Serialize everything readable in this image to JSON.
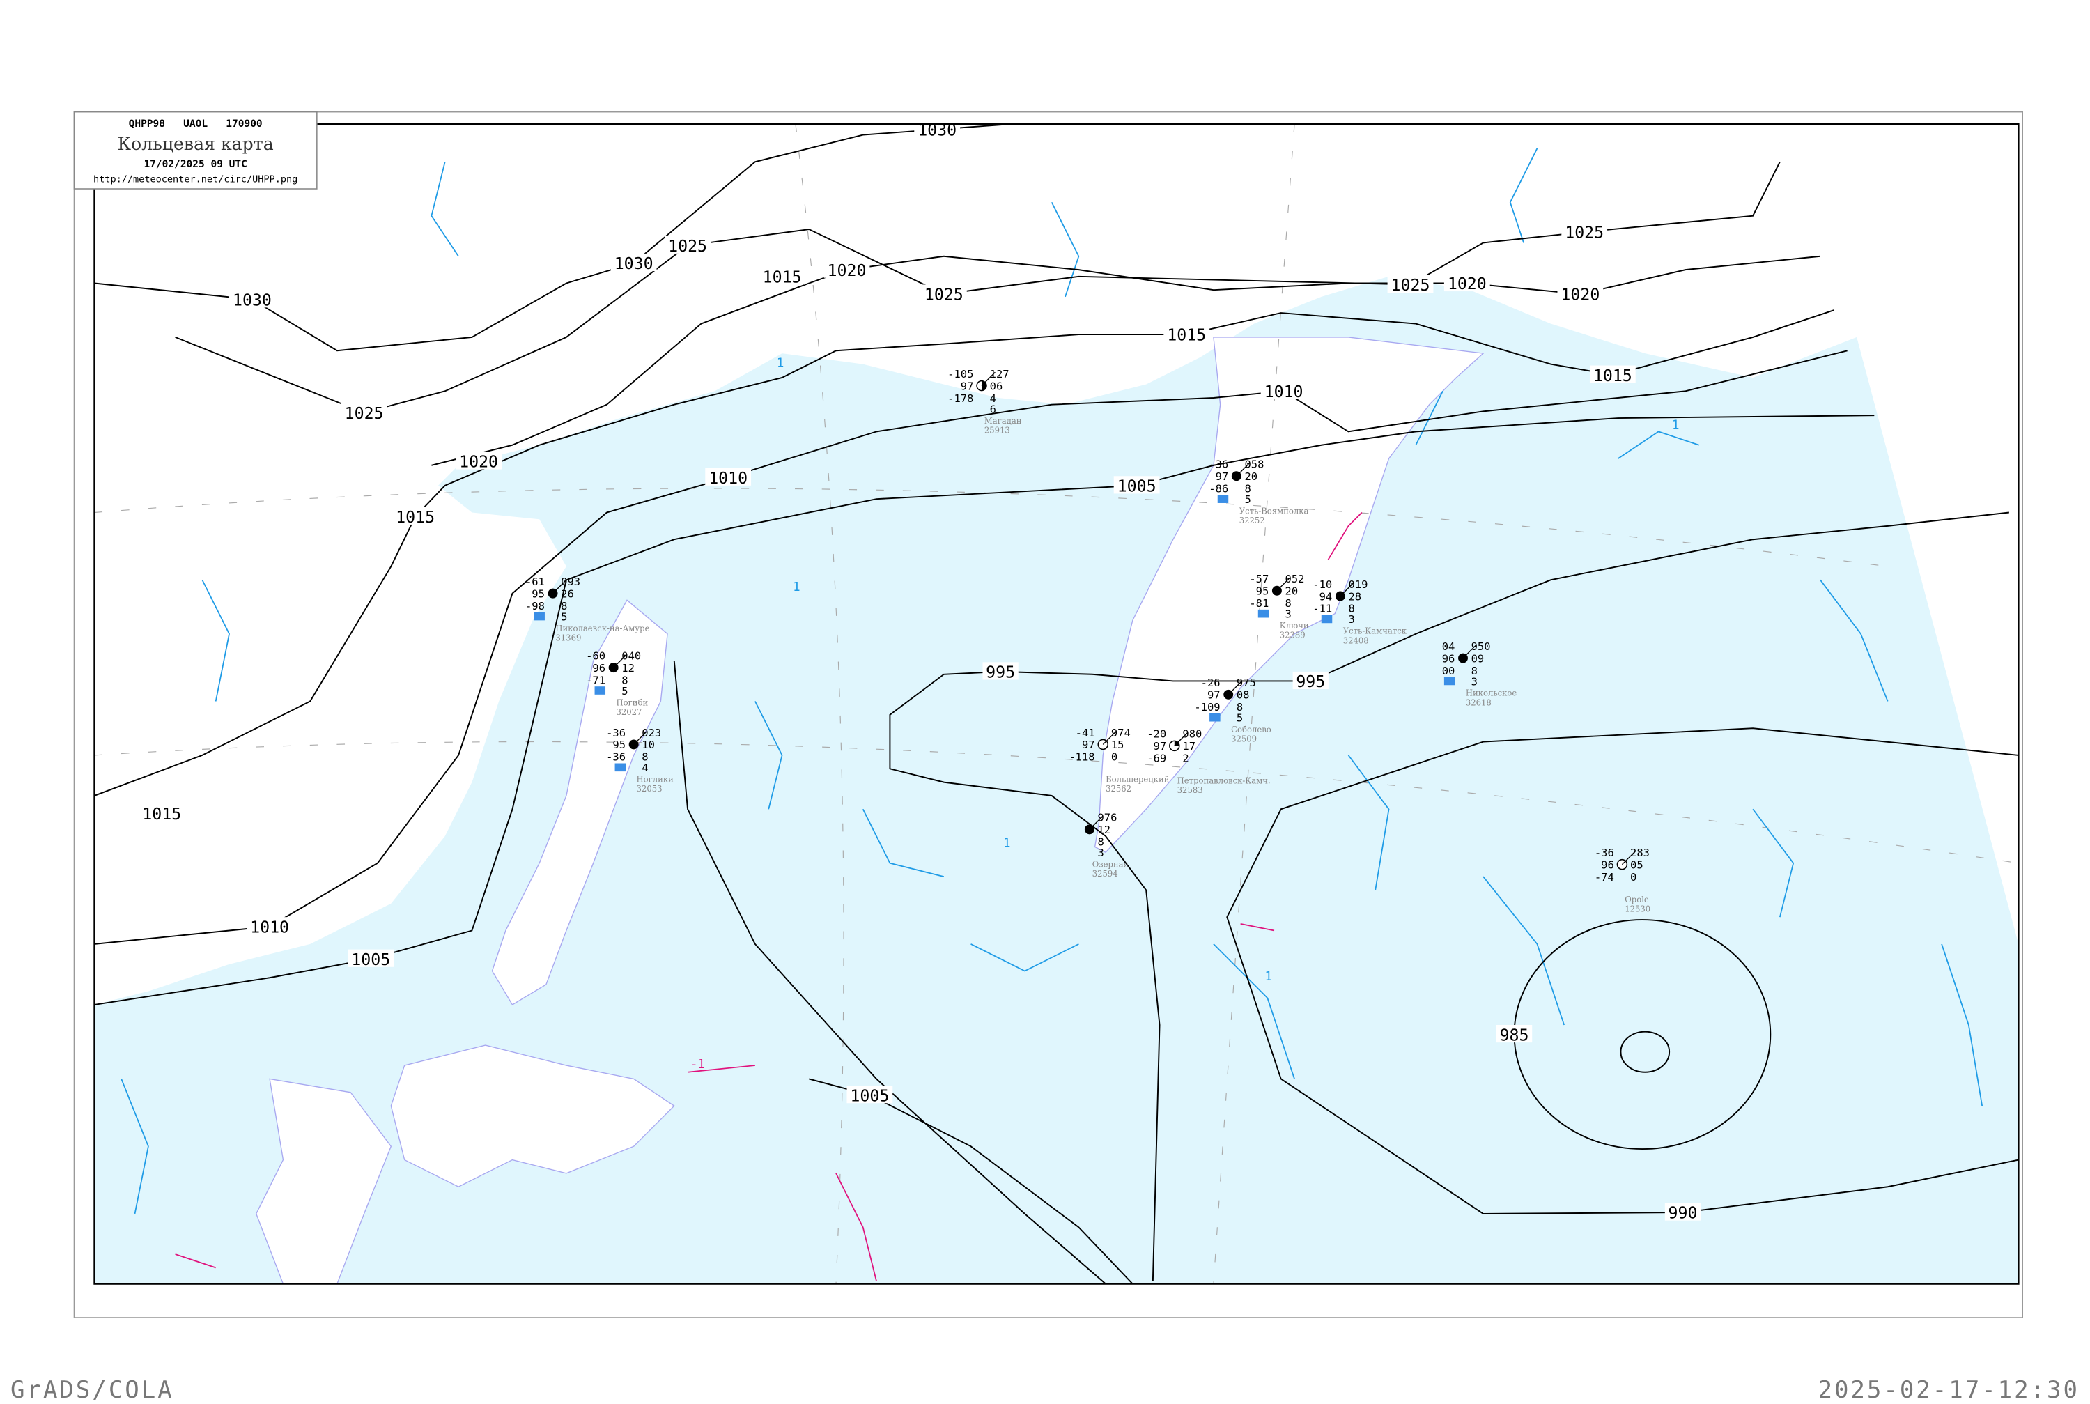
{
  "header": {
    "code_line": "QHPP98   UAOL   170900",
    "title": "Кольцевая карта",
    "datetime": "17/02/2025 09 UTC",
    "url": "http://meteocenter.net/circ/UHPP.png"
  },
  "footer": {
    "left": "GrADS/COLA",
    "right": "2025-02-17-12:30"
  },
  "colors": {
    "sea": "#e0f6fd",
    "land": "#ffffff",
    "isobar": "#000000",
    "isotherm": "#1e9be6",
    "isotherm_warm": "#e0137d",
    "coast": "#a8a8f0",
    "grid": "#aaaaaa",
    "precip_marker": "#3a8ee6"
  },
  "isobars": [
    {
      "value": "1030",
      "labels": 3
    },
    {
      "value": "1025",
      "labels": 5
    },
    {
      "value": "1020",
      "labels": 4
    },
    {
      "value": "1015",
      "labels": 5
    },
    {
      "value": "1010",
      "labels": 3
    },
    {
      "value": "1005",
      "labels": 3
    },
    {
      "value": "995",
      "labels": 2
    },
    {
      "value": "990",
      "labels": 1
    },
    {
      "value": "985",
      "labels": 1
    }
  ],
  "isotherm_labels": [
    "1",
    "1",
    "1",
    "1",
    "-1",
    "1"
  ],
  "stations": [
    {
      "name": "Усть-Воямполка",
      "id": "32252",
      "t": "-36",
      "vis": "97",
      "td": "-86",
      "p": "058",
      "dp": "20",
      "c1": "8",
      "c2": "5",
      "cover": "full"
    },
    {
      "name": "Ключи",
      "id": "32389",
      "t": "-57",
      "vis": "95",
      "td": "-81",
      "p": "052",
      "dp": "20",
      "c1": "8",
      "c2": "3",
      "cover": "full"
    },
    {
      "name": "Усть-Камчатск",
      "id": "32408",
      "t": "-10",
      "vis": "94",
      "td": "-11",
      "p": "019",
      "dp": "28",
      "c1": "8",
      "c2": "3",
      "cover": "full"
    },
    {
      "name": "Никольское",
      "id": "32618",
      "t": "04",
      "vis": "96",
      "td": "00",
      "p": "950",
      "dp": "09",
      "c1": "8",
      "c2": "3",
      "cover": "full"
    },
    {
      "name": "Петропавловск-Камч.",
      "id": "32583",
      "t": "-20",
      "vis": "97",
      "td": "-69",
      "p": "980",
      "dp": "17",
      "c1": "2",
      "c2": "",
      "cover": "partial"
    },
    {
      "name": "Большерецкий",
      "id": "32562",
      "t": "-41",
      "vis": "97",
      "td": "-118",
      "p": "974",
      "dp": "15",
      "c1": "0",
      "c2": "",
      "cover": "open"
    },
    {
      "name": "Озерная",
      "id": "32594",
      "t": "",
      "vis": "",
      "td": "",
      "p": "976",
      "dp": "12",
      "c1": "8",
      "c2": "3",
      "cover": "full"
    },
    {
      "name": "Opole",
      "id": "12530",
      "t": "-36",
      "vis": "96",
      "td": "-74",
      "p": "283",
      "dp": "05",
      "c1": "0",
      "c2": "",
      "cover": "open"
    },
    {
      "name": "Магадан",
      "id": "25913",
      "t": "-105",
      "vis": "97",
      "td": "-178",
      "p": "127",
      "dp": "06",
      "c1": "4",
      "c2": "6",
      "cover": "half"
    },
    {
      "name": "Николаевск-на-Амуре",
      "id": "31369",
      "t": "-61",
      "vis": "95",
      "td": "-98",
      "p": "093",
      "dp": "26",
      "c1": "8",
      "c2": "5",
      "cover": "full"
    },
    {
      "name": "Погиби",
      "id": "32027",
      "t": "-60",
      "vis": "96",
      "td": "-71",
      "p": "040",
      "dp": "12",
      "c1": "8",
      "c2": "5",
      "cover": "full"
    },
    {
      "name": "Ноглики",
      "id": "32053",
      "t": "-36",
      "vis": "95",
      "td": "-36",
      "p": "023",
      "dp": "10",
      "c1": "8",
      "c2": "4",
      "cover": "full"
    },
    {
      "name": "Соболево",
      "id": "32509",
      "t": "-26",
      "vis": "97",
      "td": "-109",
      "p": "975",
      "dp": "08",
      "c1": "8",
      "c2": "5",
      "cover": "full"
    }
  ]
}
